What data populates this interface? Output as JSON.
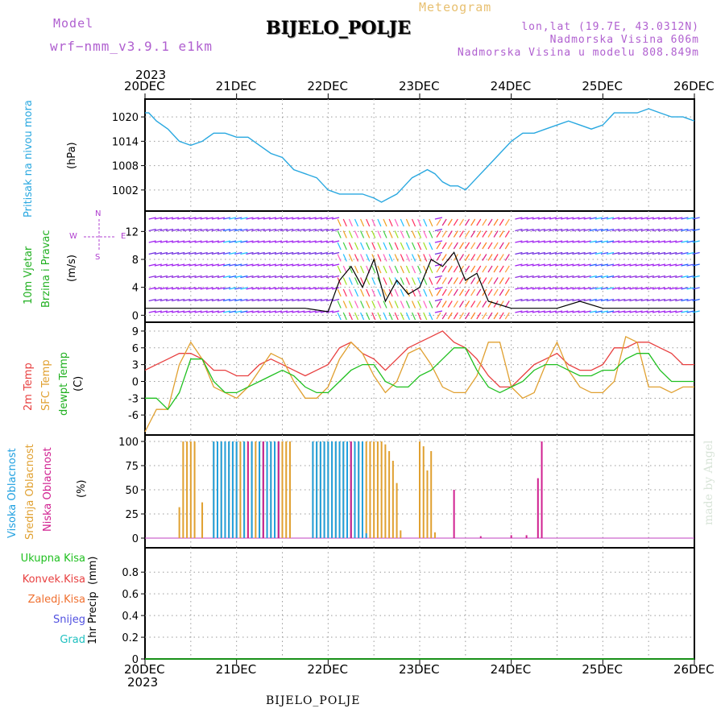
{
  "header": {
    "model_label": "Model",
    "model_name": "wrf−nmm_v3.9.1  e1km",
    "station": "BIJELO_POLJE",
    "product": "Meteogram",
    "lonlat": "lon,lat (19.7E, 43.0312N)",
    "elevation": "Nadmorska Visina 606m",
    "model_elevation": "Nadmorska Visina u modelu 808.849m"
  },
  "time_axis": {
    "top_year": "2023",
    "bottom_year": "2023",
    "labels": [
      "20DEC",
      "21DEC",
      "22DEC",
      "23DEC",
      "24DEC",
      "25DEC",
      "26DEC"
    ]
  },
  "footer": {
    "station": "BIJELO_POLJE",
    "credit": "made by Angel"
  },
  "colors": {
    "pressure": "#29a8e0",
    "temp2m": "#e84040",
    "sfc": "#e0a030",
    "dewpt": "#20c020",
    "high_cloud": "#20a0e0",
    "mid_cloud": "#e0a030",
    "low_cloud": "#d02090",
    "wind_title": "#20b020",
    "wind_axis": "#b040d0"
  },
  "chart_data": [
    {
      "type": "line",
      "id": "pressure",
      "ylabel_1": "Pritisak na nivou mora",
      "ylabel_2": "(hPa)",
      "y_ticks": [
        1002,
        1008,
        1014,
        1020
      ],
      "ylim": [
        998,
        1023
      ],
      "x_hours": [
        0,
        1,
        3,
        6,
        9,
        12,
        15,
        18,
        21,
        24,
        27,
        30,
        33,
        36,
        39,
        42,
        45,
        48,
        51,
        54,
        57,
        60,
        62,
        64,
        66,
        68,
        70,
        72,
        74,
        76,
        78,
        80,
        82,
        84,
        87,
        90,
        93,
        96,
        99,
        102,
        105,
        108,
        111,
        114,
        117,
        120,
        123,
        126,
        129,
        132,
        135,
        138,
        141,
        144
      ],
      "series": [
        {
          "values": [
            1021,
            1021,
            1019,
            1017,
            1014,
            1013,
            1014,
            1016,
            1016,
            1015,
            1015,
            1013,
            1011,
            1010,
            1007,
            1006,
            1005,
            1002,
            1001,
            1001,
            1001,
            1000,
            999,
            1000,
            1001,
            1003,
            1005,
            1006,
            1007,
            1006,
            1004,
            1003,
            1003,
            1002,
            1005,
            1008,
            1011,
            1014,
            1016,
            1016,
            1017,
            1018,
            1019,
            1018,
            1017,
            1018,
            1021,
            1021,
            1021,
            1022,
            1021,
            1020,
            1020,
            1019
          ]
        }
      ],
      "grid": true
    },
    {
      "type": "line",
      "id": "wind",
      "ylabel_1": "10m Vjetar",
      "ylabel_2": "Brzina i Pravac",
      "ylabel_3": "(m/s)",
      "compass": {
        "n": "N",
        "w": "W",
        "e": "E",
        "s": "S"
      },
      "y_ticks": [
        0,
        4,
        8,
        12
      ],
      "ylim": [
        -1,
        14
      ],
      "x_hours": [
        0,
        6,
        12,
        18,
        24,
        30,
        36,
        42,
        48,
        51,
        54,
        57,
        60,
        63,
        66,
        69,
        72,
        75,
        78,
        81,
        84,
        87,
        90,
        96,
        102,
        108,
        114,
        120,
        126,
        132,
        138,
        144
      ],
      "series": [
        {
          "name": "speed",
          "values": [
            1,
            1,
            1,
            1,
            1,
            1,
            1,
            1,
            0.5,
            5,
            7,
            4,
            8,
            2,
            5,
            3,
            4,
            8,
            7,
            9,
            5,
            6,
            2,
            1,
            1,
            1,
            2,
            1,
            1,
            1,
            1,
            1
          ]
        }
      ],
      "grid": true
    },
    {
      "type": "line",
      "id": "temperature",
      "ylabel_1": "2m Temp",
      "ylabel_2": "SFC Temp",
      "ylabel_3": "dewpt Temp",
      "ylabel_4": "(C)",
      "y_ticks": [
        -6,
        -3,
        0,
        3,
        6,
        9
      ],
      "ylim": [
        -9,
        10
      ],
      "x_hours": [
        0,
        3,
        6,
        9,
        12,
        15,
        18,
        21,
        24,
        27,
        30,
        33,
        36,
        39,
        42,
        45,
        48,
        51,
        54,
        57,
        60,
        63,
        66,
        69,
        72,
        75,
        78,
        81,
        84,
        87,
        90,
        93,
        96,
        99,
        102,
        105,
        108,
        111,
        114,
        117,
        120,
        123,
        126,
        129,
        132,
        135,
        138,
        141,
        144
      ],
      "series": [
        {
          "name": "2m Temp",
          "values": [
            2,
            3,
            4,
            5,
            5,
            4,
            2,
            2,
            1,
            1,
            3,
            4,
            3,
            2,
            1,
            2,
            3,
            6,
            7,
            5,
            4,
            2,
            4,
            6,
            7,
            8,
            9,
            7,
            6,
            4,
            1,
            -1,
            -1,
            1,
            3,
            4,
            5,
            3,
            2,
            2,
            3,
            6,
            6,
            7,
            7,
            6,
            5,
            3,
            3
          ]
        },
        {
          "name": "SFC Temp",
          "values": [
            -9,
            -5,
            -5,
            3,
            7,
            4,
            -1,
            -2,
            -3,
            -1,
            2,
            5,
            4,
            0,
            -3,
            -3,
            -1,
            4,
            7,
            5,
            1,
            -2,
            0,
            5,
            6,
            3,
            -1,
            -2,
            -2,
            1,
            7,
            7,
            -1,
            -3,
            -2,
            3,
            7,
            2,
            -1,
            -2,
            -2,
            0,
            8,
            7,
            -1,
            -1,
            -2,
            -1,
            -1
          ]
        },
        {
          "name": "dewpt Temp",
          "values": [
            -3,
            -3,
            -5,
            -2,
            4,
            4,
            0,
            -2,
            -2,
            -1,
            0,
            1,
            2,
            1,
            -1,
            -2,
            -2,
            0,
            2,
            3,
            3,
            0,
            -1,
            -1,
            1,
            2,
            4,
            6,
            6,
            2,
            -1,
            -2,
            -1,
            0,
            2,
            3,
            3,
            2,
            1,
            1,
            2,
            2,
            4,
            5,
            5,
            2,
            0,
            0,
            0
          ]
        }
      ],
      "grid": true
    },
    {
      "type": "bar",
      "id": "clouds",
      "ylabel_1": "Visoka Oblacnost",
      "ylabel_2": "Srednja Oblacnost",
      "ylabel_3": "Niska Oblacnost",
      "ylabel_4": "(%)",
      "y_ticks": [
        0,
        25,
        50,
        75,
        100
      ],
      "ylim": [
        0,
        100
      ],
      "series": [
        {
          "name": "Srednja Oblacnost",
          "x_hours": [
            9,
            10,
            11,
            12,
            13,
            15,
            18,
            19,
            20,
            21,
            22,
            23,
            24,
            25,
            26,
            27,
            28,
            29,
            30,
            31,
            32,
            33,
            34,
            35,
            36,
            37,
            38,
            44,
            45,
            46,
            47,
            48,
            49,
            50,
            51,
            52,
            53,
            54,
            55,
            56,
            57,
            58,
            59,
            60,
            61,
            62,
            63,
            64,
            65,
            66,
            67,
            72,
            73,
            74,
            75,
            76
          ],
          "values": [
            32,
            100,
            100,
            100,
            100,
            37,
            100,
            100,
            100,
            100,
            100,
            100,
            100,
            100,
            100,
            100,
            100,
            100,
            100,
            100,
            100,
            100,
            100,
            100,
            100,
            100,
            100,
            100,
            100,
            100,
            100,
            100,
            100,
            100,
            100,
            100,
            100,
            100,
            100,
            100,
            100,
            100,
            100,
            100,
            100,
            100,
            97,
            90,
            80,
            57,
            8,
            100,
            95,
            70,
            90,
            6
          ]
        },
        {
          "name": "Visoka Oblacnost",
          "x_hours": [
            18,
            19,
            20,
            21,
            22,
            23,
            24,
            26,
            28,
            30,
            31,
            32,
            33,
            34,
            35,
            44,
            45,
            46,
            47,
            48,
            49,
            50,
            51,
            52,
            53,
            54,
            55,
            56,
            57,
            58
          ],
          "values": [
            100,
            100,
            100,
            100,
            100,
            100,
            100,
            100,
            100,
            100,
            100,
            100,
            100,
            100,
            100,
            100,
            100,
            100,
            100,
            100,
            100,
            100,
            100,
            100,
            100,
            100,
            100,
            100,
            100,
            5
          ]
        },
        {
          "name": "Niska Oblacnost",
          "x_hours": [
            27,
            31,
            35,
            54,
            81,
            88,
            96,
            100,
            103,
            104
          ],
          "values": [
            100,
            100,
            100,
            100,
            50,
            2,
            3,
            3,
            62,
            100
          ]
        }
      ],
      "grid": true
    },
    {
      "type": "line",
      "id": "precip",
      "ylabel_1": "1hr Precip",
      "ylabel_2": "(mm)",
      "legend": [
        "Ukupna Kisa",
        "Konvek.Kisa",
        "Zaledj.Kisa",
        "Snijeg",
        "Grad"
      ],
      "y_ticks": [
        0,
        0.2,
        0.4,
        0.6,
        0.8
      ],
      "ylim": [
        0,
        0.95
      ],
      "x_hours": [
        0,
        144
      ],
      "series": [
        {
          "name": "Ukupna Kisa",
          "values": [
            0,
            0
          ]
        }
      ],
      "grid": true
    }
  ]
}
